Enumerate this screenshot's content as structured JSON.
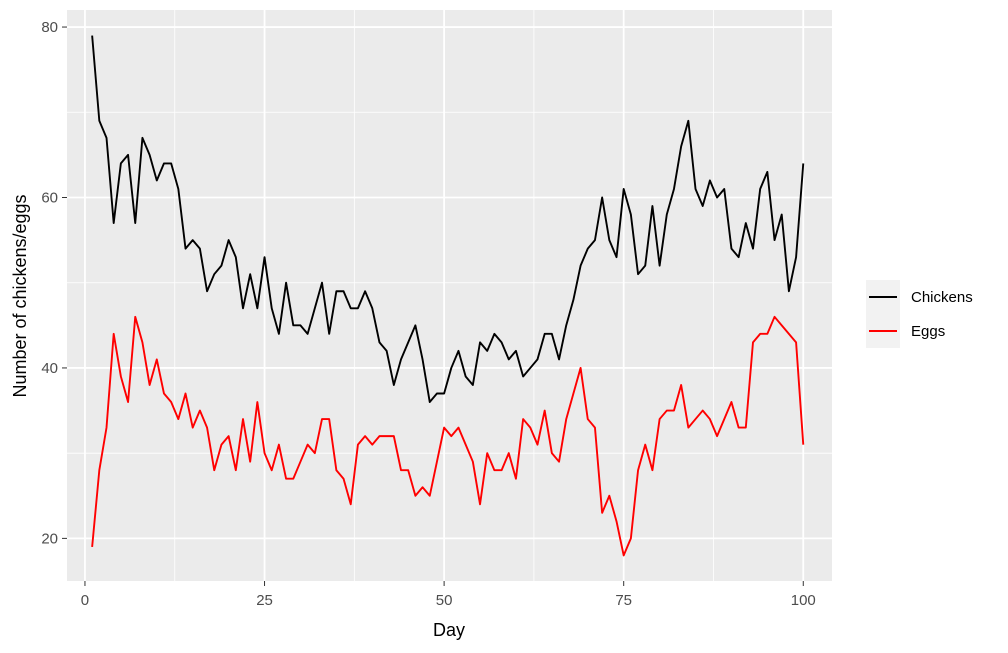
{
  "chart_data": {
    "type": "line",
    "xlabel": "Day",
    "ylabel": "Number of chickens/eggs",
    "xlim": [
      -2.5,
      104
    ],
    "ylim": [
      15,
      82
    ],
    "x_ticks": [
      0,
      25,
      50,
      75,
      100
    ],
    "y_ticks": [
      20,
      40,
      60,
      80
    ],
    "grid": true,
    "legend_position": "right",
    "colors": {
      "panel": "#EBEBEB",
      "grid": "#FFFFFF",
      "axis_text": "#4D4D4D",
      "title_text": "#000000"
    },
    "x": [
      1,
      2,
      3,
      4,
      5,
      6,
      7,
      8,
      9,
      10,
      11,
      12,
      13,
      14,
      15,
      16,
      17,
      18,
      19,
      20,
      21,
      22,
      23,
      24,
      25,
      26,
      27,
      28,
      29,
      30,
      31,
      32,
      33,
      34,
      35,
      36,
      37,
      38,
      39,
      40,
      41,
      42,
      43,
      44,
      45,
      46,
      47,
      48,
      49,
      50,
      51,
      52,
      53,
      54,
      55,
      56,
      57,
      58,
      59,
      60,
      61,
      62,
      63,
      64,
      65,
      66,
      67,
      68,
      69,
      70,
      71,
      72,
      73,
      74,
      75,
      76,
      77,
      78,
      79,
      80,
      81,
      82,
      83,
      84,
      85,
      86,
      87,
      88,
      89,
      90,
      91,
      92,
      93,
      94,
      95,
      96,
      97,
      98,
      99,
      100
    ],
    "series": [
      {
        "name": "Chickens",
        "color": "#000000",
        "values": [
          79,
          69,
          67,
          57,
          64,
          65,
          57,
          67,
          65,
          62,
          64,
          64,
          61,
          54,
          55,
          54,
          49,
          51,
          52,
          55,
          53,
          47,
          51,
          47,
          53,
          47,
          44,
          50,
          45,
          45,
          44,
          47,
          50,
          44,
          49,
          49,
          47,
          47,
          49,
          47,
          43,
          42,
          38,
          41,
          43,
          45,
          41,
          36,
          37,
          37,
          40,
          42,
          39,
          38,
          43,
          42,
          44,
          43,
          41,
          42,
          39,
          40,
          41,
          44,
          44,
          41,
          45,
          48,
          52,
          54,
          55,
          60,
          55,
          53,
          61,
          58,
          51,
          52,
          59,
          52,
          58,
          61,
          66,
          69,
          61,
          59,
          62,
          60,
          61,
          54,
          53,
          57,
          54,
          61,
          63,
          55,
          58,
          49,
          53,
          64
        ]
      },
      {
        "name": "Eggs",
        "color": "#FF0000",
        "values": [
          19,
          28,
          33,
          44,
          39,
          36,
          46,
          43,
          38,
          41,
          37,
          36,
          34,
          37,
          33,
          35,
          33,
          28,
          31,
          32,
          28,
          34,
          29,
          36,
          30,
          28,
          31,
          27,
          27,
          29,
          31,
          30,
          34,
          34,
          28,
          27,
          24,
          31,
          32,
          31,
          32,
          32,
          32,
          28,
          28,
          25,
          26,
          25,
          29,
          33,
          32,
          33,
          31,
          29,
          24,
          30,
          28,
          28,
          30,
          27,
          34,
          33,
          31,
          35,
          30,
          29,
          34,
          37,
          40,
          34,
          33,
          23,
          25,
          22,
          18,
          20,
          28,
          31,
          28,
          34,
          35,
          35,
          38,
          33,
          34,
          35,
          34,
          32,
          34,
          36,
          33,
          33,
          43,
          44,
          44,
          46,
          45,
          44,
          43,
          31
        ]
      }
    ]
  }
}
